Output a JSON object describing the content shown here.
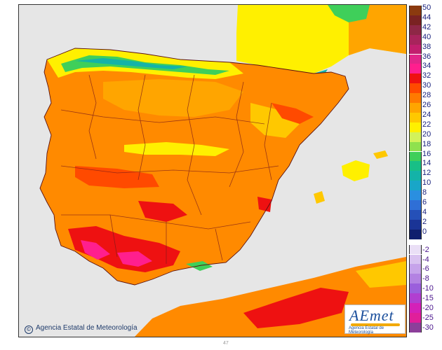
{
  "legend": {
    "positive": [
      {
        "label": "50",
        "color": "#8b3a0f"
      },
      {
        "label": "44",
        "color": "#7a2222"
      },
      {
        "label": "42",
        "color": "#8e2746"
      },
      {
        "label": "40",
        "color": "#a8245c"
      },
      {
        "label": "38",
        "color": "#c21f6e"
      },
      {
        "label": "36",
        "color": "#e2268a"
      },
      {
        "label": "34",
        "color": "#ff1f8e"
      },
      {
        "label": "32",
        "color": "#ee1111"
      },
      {
        "label": "30",
        "color": "#ff4a00"
      },
      {
        "label": "28",
        "color": "#ff7a00"
      },
      {
        "label": "26",
        "color": "#ffa500"
      },
      {
        "label": "24",
        "color": "#ffc800"
      },
      {
        "label": "22",
        "color": "#fff000"
      },
      {
        "label": "20",
        "color": "#d2f25a"
      },
      {
        "label": "18",
        "color": "#8fe14e"
      },
      {
        "label": "16",
        "color": "#3fcf5a"
      },
      {
        "label": "14",
        "color": "#18bf86"
      },
      {
        "label": "12",
        "color": "#14b3a8"
      },
      {
        "label": "10",
        "color": "#19a6c8"
      },
      {
        "label": "8",
        "color": "#2a8fe0"
      },
      {
        "label": "6",
        "color": "#2f6fd6"
      },
      {
        "label": "4",
        "color": "#2550b8"
      },
      {
        "label": "2",
        "color": "#1a3496"
      },
      {
        "label": "0",
        "color": "#0f1f6e"
      }
    ],
    "negative": [
      {
        "label": "-2",
        "color": "#eadff6"
      },
      {
        "label": "-4",
        "color": "#d9c2f0"
      },
      {
        "label": "-6",
        "color": "#c6a3ea"
      },
      {
        "label": "-8",
        "color": "#b382e2"
      },
      {
        "label": "-10",
        "color": "#9b5fdc"
      },
      {
        "label": "-15",
        "color": "#b13fd0"
      },
      {
        "label": "-20",
        "color": "#d421b8"
      },
      {
        "label": "-25",
        "color": "#e01f9a"
      },
      {
        "label": "-30",
        "color": "#8c3f9a"
      }
    ]
  },
  "credit": {
    "icon": "copyright-icon",
    "text": "Agencia Estatal de Meteorología"
  },
  "logo": {
    "word": "AEmet",
    "sub": "Agencia Estatal de Meteorología"
  },
  "bottom_mark": "47",
  "colors": {
    "sea": "#e6e6e6",
    "warm": "#ff8a00",
    "hot": "#ff4a00",
    "very_hot": "#ee1111",
    "extreme": "#ff1f8e",
    "cool": "#fff000",
    "cold": "#3fcf5a",
    "colder": "#14b3a8",
    "border": "#7a1a1a"
  }
}
